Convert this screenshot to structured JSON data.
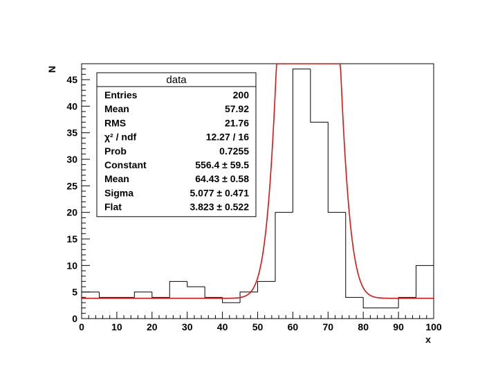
{
  "chart_data": {
    "type": "histogram",
    "xlabel": "x",
    "ylabel": "N",
    "xlim": [
      0,
      100
    ],
    "ylim": [
      0,
      48
    ],
    "x_ticks": [
      0,
      10,
      20,
      30,
      40,
      50,
      60,
      70,
      80,
      90,
      100
    ],
    "y_ticks": [
      0,
      5,
      10,
      15,
      20,
      25,
      30,
      35,
      40,
      45
    ],
    "bin_edges": [
      0,
      5,
      10,
      15,
      20,
      25,
      30,
      35,
      40,
      45,
      50,
      55,
      60,
      65,
      70,
      75,
      80,
      85,
      90,
      95,
      100
    ],
    "bin_counts": [
      5,
      4,
      4,
      5,
      4,
      7,
      6,
      4,
      3,
      5,
      7,
      20,
      47,
      37,
      20,
      4,
      2,
      2,
      4,
      10
    ],
    "histogram_color": "#000000",
    "fit": {
      "function": "gaussian + flat",
      "color": "#e01010",
      "constant": 556.4,
      "mean": 64.43,
      "sigma": 5.077,
      "flat": 3.823
    },
    "stats_box": {
      "title": "data",
      "rows": [
        {
          "label": "Entries",
          "value": "200"
        },
        {
          "label": "Mean",
          "value": "57.92"
        },
        {
          "label": "RMS",
          "value": "21.76"
        },
        {
          "label": "χ² / ndf",
          "value": "12.27 / 16"
        },
        {
          "label": "Prob",
          "value": "0.7255"
        },
        {
          "label": "Constant",
          "value": "556.4 ± 59.5"
        },
        {
          "label": "Mean",
          "value": "64.43 ± 0.58"
        },
        {
          "label": "Sigma",
          "value": "5.077 ± 0.471"
        },
        {
          "label": "Flat",
          "value": "3.823 ± 0.522"
        }
      ]
    }
  }
}
